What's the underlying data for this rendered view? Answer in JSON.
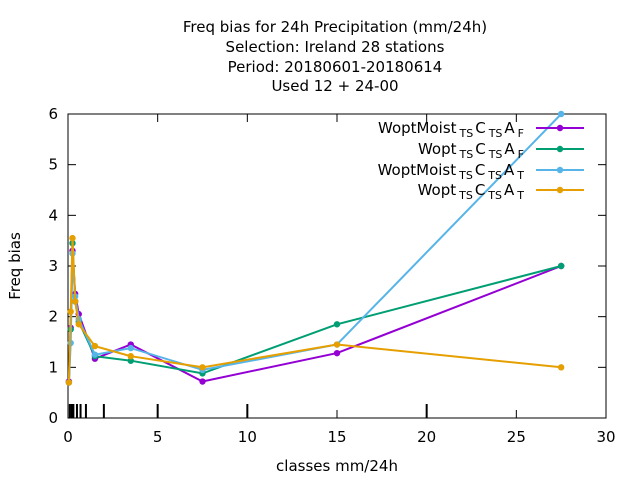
{
  "title_lines": [
    "Freq bias  for 24h Precipitation (mm/24h)",
    "Selection: Ireland     28 stations",
    "Period: 20180601-20180614",
    "Used  12 + 24-00"
  ],
  "chart_data": {
    "type": "line",
    "xlabel": "classes mm/24h",
    "ylabel": "Freq bias",
    "xlim": [
      0,
      30
    ],
    "ylim": [
      0,
      6
    ],
    "x_ticks": [
      0,
      5,
      10,
      15,
      20,
      25,
      30
    ],
    "y_ticks": [
      0,
      1,
      2,
      3,
      4,
      5,
      6
    ],
    "grid": false,
    "legend_position": "top-right",
    "class_marks": [
      0.1,
      0.2,
      0.3,
      0.5,
      0.7,
      1,
      2,
      5,
      10,
      20
    ],
    "series": [
      {
        "name": "WoptMoist_TS C_TS A_F",
        "label_parts": {
          "main": "WoptMoist",
          "sub1": "TS",
          "mid": "C",
          "sub2": "TS",
          "end": "A",
          "sub3": "F"
        },
        "color": "#9400d3",
        "x": [
          0.05,
          0.15,
          0.25,
          0.4,
          0.6,
          1.5,
          3.5,
          7.5,
          15,
          27.5
        ],
        "y": [
          0.72,
          1.78,
          3.3,
          2.45,
          2.05,
          1.17,
          1.45,
          0.72,
          1.28,
          3.0
        ]
      },
      {
        "name": "Wopt_TS C_TS A_F",
        "label_parts": {
          "main": "Wopt",
          "sub1": "TS",
          "mid": "C",
          "sub2": "TS",
          "end": "A",
          "sub3": "F"
        },
        "color": "#009e73",
        "x": [
          0.05,
          0.15,
          0.25,
          0.4,
          0.6,
          1.5,
          3.5,
          7.5,
          15,
          27.5
        ],
        "y": [
          0.7,
          1.75,
          3.45,
          2.3,
          1.9,
          1.22,
          1.13,
          0.88,
          1.85,
          3.0
        ]
      },
      {
        "name": "WoptMoist_TS C_TS A_T",
        "label_parts": {
          "main": "WoptMoist",
          "sub1": "TS",
          "mid": "C",
          "sub2": "TS",
          "end": "A",
          "sub3": "T"
        },
        "color": "#56b4e9",
        "x": [
          0.05,
          0.15,
          0.25,
          0.4,
          0.6,
          1.5,
          3.5,
          7.5,
          15,
          27.5
        ],
        "y": [
          0.7,
          1.48,
          3.25,
          2.4,
          1.95,
          1.25,
          1.38,
          0.95,
          1.45,
          6.0
        ]
      },
      {
        "name": "Wopt_TS C_TS A_T",
        "label_parts": {
          "main": "Wopt",
          "sub1": "TS",
          "mid": "C",
          "sub2": "TS",
          "end": "A",
          "sub3": "T"
        },
        "color": "#e69f00",
        "x": [
          0.05,
          0.15,
          0.25,
          0.4,
          0.6,
          1.5,
          3.5,
          7.5,
          15,
          27.5
        ],
        "y": [
          0.7,
          2.1,
          3.55,
          2.3,
          1.85,
          1.42,
          1.22,
          1.0,
          1.45,
          1.0
        ]
      }
    ]
  }
}
